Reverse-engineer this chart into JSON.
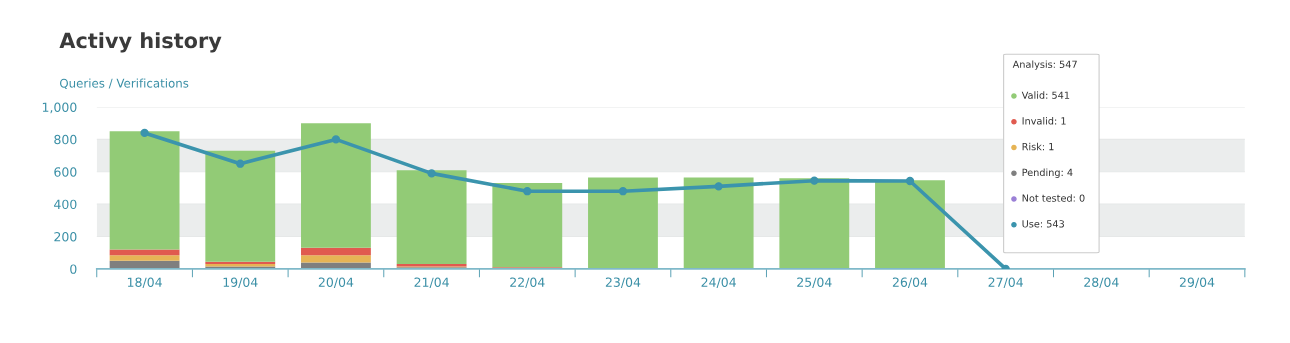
{
  "chart_data": {
    "type": "bar",
    "title": "Activy history",
    "ylabel": "Queries / Verifications",
    "categories": [
      "18/04",
      "19/04",
      "20/04",
      "21/04",
      "22/04",
      "23/04",
      "24/04",
      "25/04",
      "26/04",
      "27/04",
      "28/04",
      "29/04"
    ],
    "stacked": true,
    "series": [
      {
        "color": "#9b80d6",
        "values": [
          0,
          0,
          0,
          0,
          0,
          0,
          0,
          0,
          0,
          null,
          null,
          null
        ]
      },
      {
        "color": "#7f7f7f",
        "values": [
          50,
          15,
          40,
          10,
          3,
          3,
          3,
          3,
          4,
          null,
          null,
          null
        ]
      },
      {
        "color": "#e6b455",
        "values": [
          35,
          15,
          45,
          5,
          3,
          0,
          0,
          0,
          1,
          null,
          null,
          null
        ]
      },
      {
        "color": "#e05a4f",
        "values": [
          35,
          15,
          45,
          15,
          4,
          0,
          0,
          0,
          1,
          null,
          null,
          null
        ]
      },
      {
        "color": "#92cb76",
        "values": [
          730,
          685,
          770,
          580,
          520,
          562,
          562,
          557,
          541,
          null,
          null,
          null
        ]
      },
      {
        "type": "line",
        "color": "#3b94ad",
        "values": [
          840,
          650,
          800,
          590,
          480,
          480,
          510,
          545,
          543,
          0,
          null,
          null
        ]
      }
    ],
    "ylim": [
      0,
      1000
    ],
    "yticks": [
      0,
      200,
      400,
      600,
      800,
      {
        "value": 1000,
        "label": "1,000"
      }
    ],
    "grid": "y",
    "bands": [
      {
        "axis": "y",
        "from": 200,
        "to": 400,
        "color": "#ebeded"
      },
      {
        "axis": "y",
        "from": 600,
        "to": 800,
        "color": "#ebeded"
      }
    ],
    "marker": "circle",
    "line_style": "solid",
    "annotations": [
      "Analysis: 547",
      "Valid: 541",
      "Invalid: 1",
      "Risk: 1",
      "Pending: 4",
      "Not tested: 0",
      "Use: 543"
    ]
  }
}
